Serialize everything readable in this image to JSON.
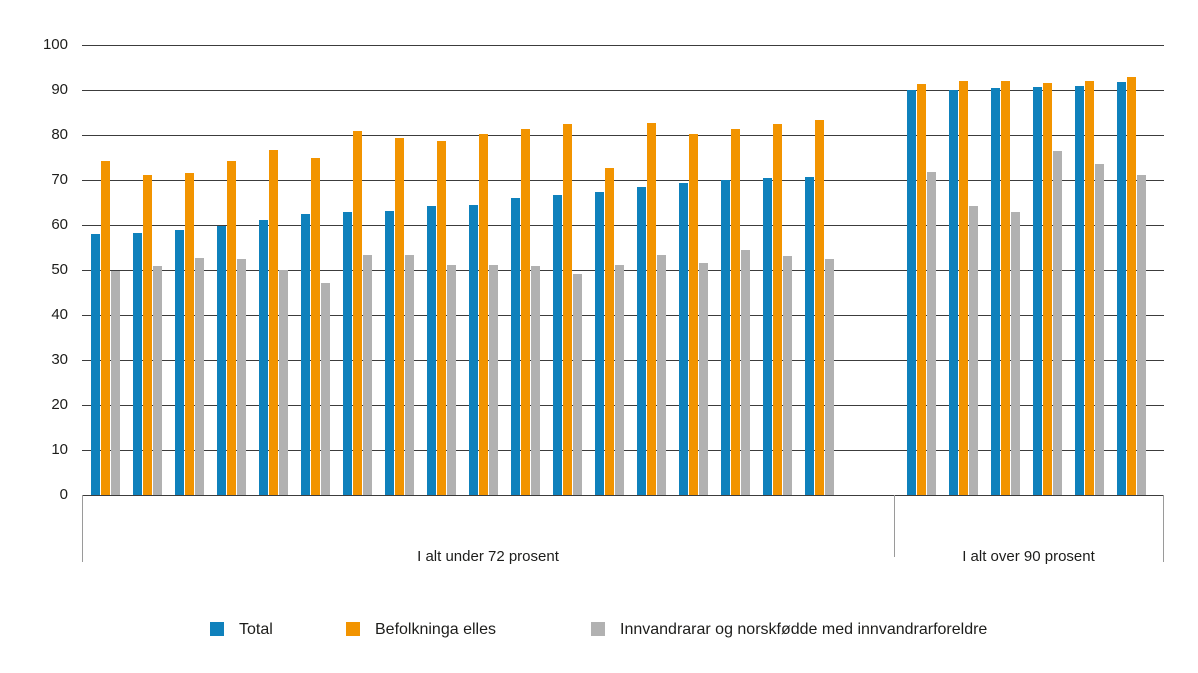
{
  "chart_data": {
    "type": "bar",
    "title": "",
    "xlabel": "",
    "ylabel": "",
    "ylim": [
      0,
      100
    ],
    "yticks": [
      0,
      10,
      20,
      30,
      40,
      50,
      60,
      70,
      80,
      90,
      100
    ],
    "grid": "horizontal",
    "legend_position": "bottom",
    "sections": [
      {
        "label": "I alt under 72 prosent",
        "group_count": 18
      },
      {
        "label": "I alt over 90 prosent",
        "group_count": 6
      }
    ],
    "series": [
      {
        "name": "Total",
        "color": "#0f81bc",
        "values": [
          58.1,
          58.2,
          58.9,
          59.8,
          61.1,
          62.5,
          63.0,
          63.2,
          64.3,
          64.5,
          65.9,
          66.7,
          67.3,
          68.5,
          69.3,
          69.9,
          70.4,
          70.7,
          90.0,
          90.1,
          90.4,
          90.6,
          90.8,
          91.7
        ]
      },
      {
        "name": "Befolkninga elles",
        "color": "#f29400",
        "values": [
          74.3,
          71.1,
          71.5,
          74.2,
          76.6,
          75.0,
          80.9,
          79.3,
          78.6,
          80.3,
          81.3,
          82.5,
          72.6,
          82.6,
          80.2,
          81.3,
          82.4,
          83.4,
          91.4,
          92.0,
          91.9,
          91.5,
          91.9,
          93.0
        ]
      },
      {
        "name": "Innvandrarar og norskfødde med innvandrarforeldre",
        "color": "#b1b1b1",
        "values": [
          49.8,
          50.9,
          52.7,
          52.4,
          49.9,
          47.1,
          53.4,
          53.4,
          51.2,
          51.2,
          50.8,
          49.1,
          51.1,
          53.4,
          51.5,
          54.4,
          53.1,
          52.4,
          71.8,
          64.2,
          63.0,
          76.4,
          73.6,
          71.2
        ]
      }
    ],
    "colors": {
      "gridline": "#3c3c3c",
      "bracket": "#9a9a9a",
      "text": "#1d1d1b"
    }
  }
}
